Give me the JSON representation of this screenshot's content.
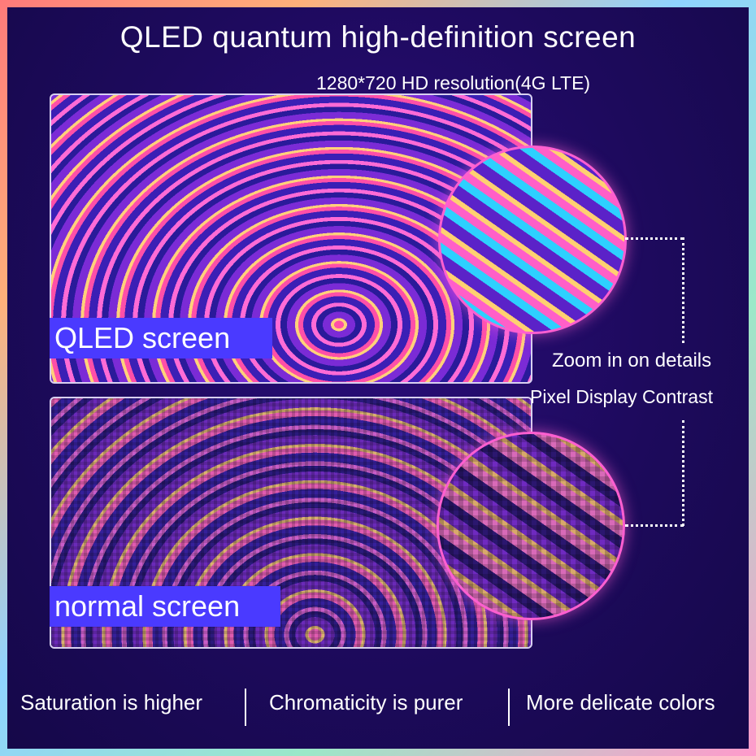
{
  "title": "QLED quantum high-definition screen",
  "subtitle": "1280*720 HD resolution(4G LTE)",
  "labels": {
    "qled": "QLED screen",
    "normal": "normal screen"
  },
  "callout": {
    "zoom": "Zoom in on details",
    "pixel": "Pixel Display Contrast"
  },
  "features": [
    "Saturation is higher",
    "Chromaticity is purer",
    "More delicate colors"
  ],
  "colors": {
    "background": "#1d0a5c",
    "label_bg": "#4a3aff",
    "zoom_border": "#ff5fd0"
  }
}
